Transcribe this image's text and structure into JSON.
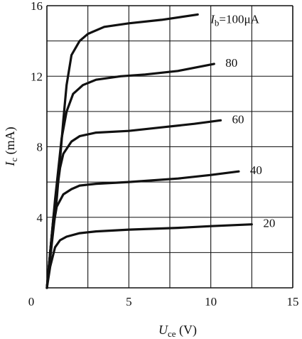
{
  "chart_data": {
    "type": "line",
    "xlabel": {
      "symbol": "U",
      "sub": "ce",
      "unit": " (V)"
    },
    "ylabel": {
      "symbol": "I",
      "sub": "c",
      "unit": " (mA)"
    },
    "xlim": [
      0,
      15
    ],
    "ylim": [
      0,
      16
    ],
    "x_ticks": [
      0,
      5,
      10,
      15
    ],
    "y_ticks": [
      0,
      4,
      8,
      12,
      16
    ],
    "x_tick_labels": [
      "5",
      "10",
      "15"
    ],
    "y_tick_labels": [
      "0",
      "4",
      "8",
      "12",
      "16"
    ],
    "grid": true,
    "series": [
      {
        "name": "100",
        "label": {
          "symbol": "I",
          "sub": "b",
          "text": "=100μA"
        },
        "x": [
          0.0,
          0.6,
          1.0,
          1.2,
          1.5,
          2.0,
          2.5,
          3.5,
          5.0,
          7.0,
          9.2
        ],
        "y": [
          0.0,
          5.0,
          9.5,
          11.5,
          13.2,
          14.0,
          14.4,
          14.8,
          15.0,
          15.2,
          15.5
        ]
      },
      {
        "name": "80",
        "label": {
          "text": "80"
        },
        "x": [
          0.0,
          0.5,
          0.9,
          1.2,
          1.6,
          2.2,
          3.0,
          4.5,
          6.0,
          8.0,
          10.2
        ],
        "y": [
          0.0,
          5.0,
          8.5,
          10.0,
          11.0,
          11.5,
          11.8,
          12.0,
          12.1,
          12.3,
          12.7
        ]
      },
      {
        "name": "60",
        "label": {
          "text": "60"
        },
        "x": [
          0.0,
          0.4,
          0.8,
          1.0,
          1.5,
          2.0,
          3.0,
          5.0,
          7.0,
          9.0,
          10.6
        ],
        "y": [
          0.0,
          4.0,
          6.8,
          7.6,
          8.3,
          8.6,
          8.8,
          8.9,
          9.1,
          9.3,
          9.5
        ]
      },
      {
        "name": "40",
        "label": {
          "text": "40"
        },
        "x": [
          0.0,
          0.3,
          0.6,
          1.0,
          1.5,
          2.0,
          3.0,
          5.0,
          8.0,
          10.0,
          11.7
        ],
        "y": [
          0.0,
          3.0,
          4.6,
          5.3,
          5.6,
          5.8,
          5.9,
          6.0,
          6.2,
          6.4,
          6.6
        ]
      },
      {
        "name": "20",
        "label": {
          "text": "20"
        },
        "x": [
          0.0,
          0.2,
          0.5,
          0.8,
          1.2,
          2.0,
          3.0,
          5.0,
          8.0,
          10.0,
          12.5
        ],
        "y": [
          0.0,
          1.2,
          2.3,
          2.7,
          2.9,
          3.1,
          3.2,
          3.3,
          3.4,
          3.5,
          3.6
        ]
      }
    ]
  }
}
